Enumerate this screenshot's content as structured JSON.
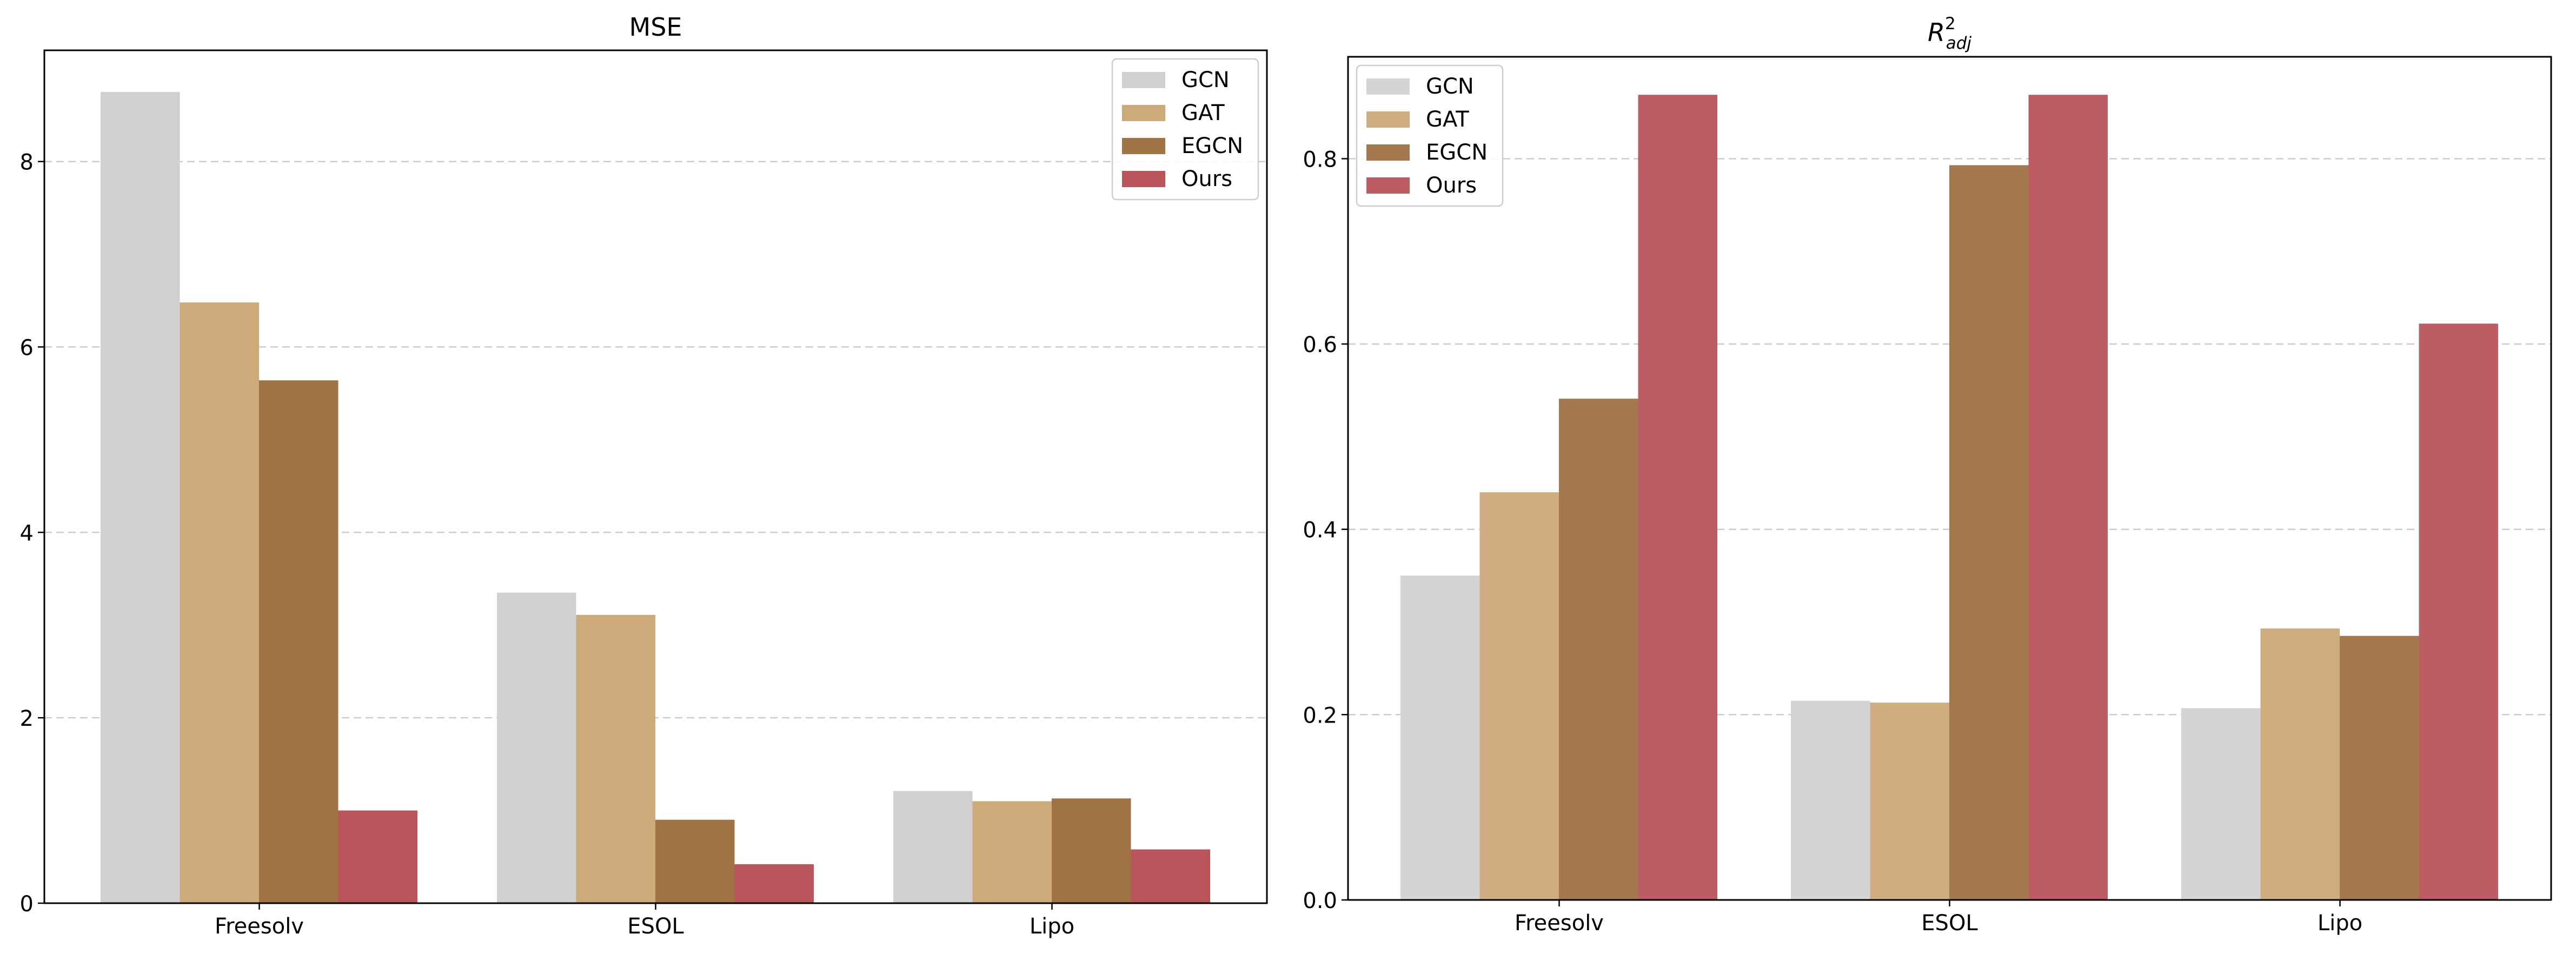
{
  "chart_data": [
    {
      "type": "bar",
      "title": "MSE",
      "xlabel": "",
      "ylabel": "",
      "categories": [
        "Freesolv",
        "ESOL",
        "Lipo"
      ],
      "ylim": [
        0,
        9.2
      ],
      "yticks": [
        0,
        2,
        4,
        6,
        8
      ],
      "grid": "y-dashed",
      "legend_position": "top-right",
      "series": [
        {
          "name": "GCN",
          "color": "#d0d0d0",
          "values": [
            8.75,
            3.35,
            1.21
          ]
        },
        {
          "name": "GAT",
          "color": "#cdaa7a",
          "values": [
            6.48,
            3.11,
            1.1
          ]
        },
        {
          "name": "EGCN",
          "color": "#a07345",
          "values": [
            5.64,
            0.9,
            1.13
          ]
        },
        {
          "name": "Ours",
          "color": "#b8545a",
          "values": [
            1.0,
            0.42,
            0.58
          ]
        }
      ]
    },
    {
      "type": "bar",
      "title": "R",
      "title_superscript": "2",
      "title_subscript": "adj",
      "xlabel": "",
      "ylabel": "",
      "categories": [
        "Freesolv",
        "ESOL",
        "Lipo"
      ],
      "ylim": [
        0,
        0.91
      ],
      "yticks": [
        "0.0",
        "0.2",
        "0.4",
        "0.6",
        "0.8"
      ],
      "grid": "y-dashed",
      "legend_position": "top-left",
      "series": [
        {
          "name": "GCN",
          "color": "#d4d4d4",
          "values": [
            0.35,
            0.215,
            0.207
          ]
        },
        {
          "name": "GAT",
          "color": "#d0ad80",
          "values": [
            0.44,
            0.213,
            0.293
          ]
        },
        {
          "name": "EGCN",
          "color": "#a5774c",
          "values": [
            0.541,
            0.793,
            0.285
          ]
        },
        {
          "name": "Ours",
          "color": "#bd5c63",
          "values": [
            0.869,
            0.869,
            0.622
          ]
        }
      ]
    }
  ]
}
